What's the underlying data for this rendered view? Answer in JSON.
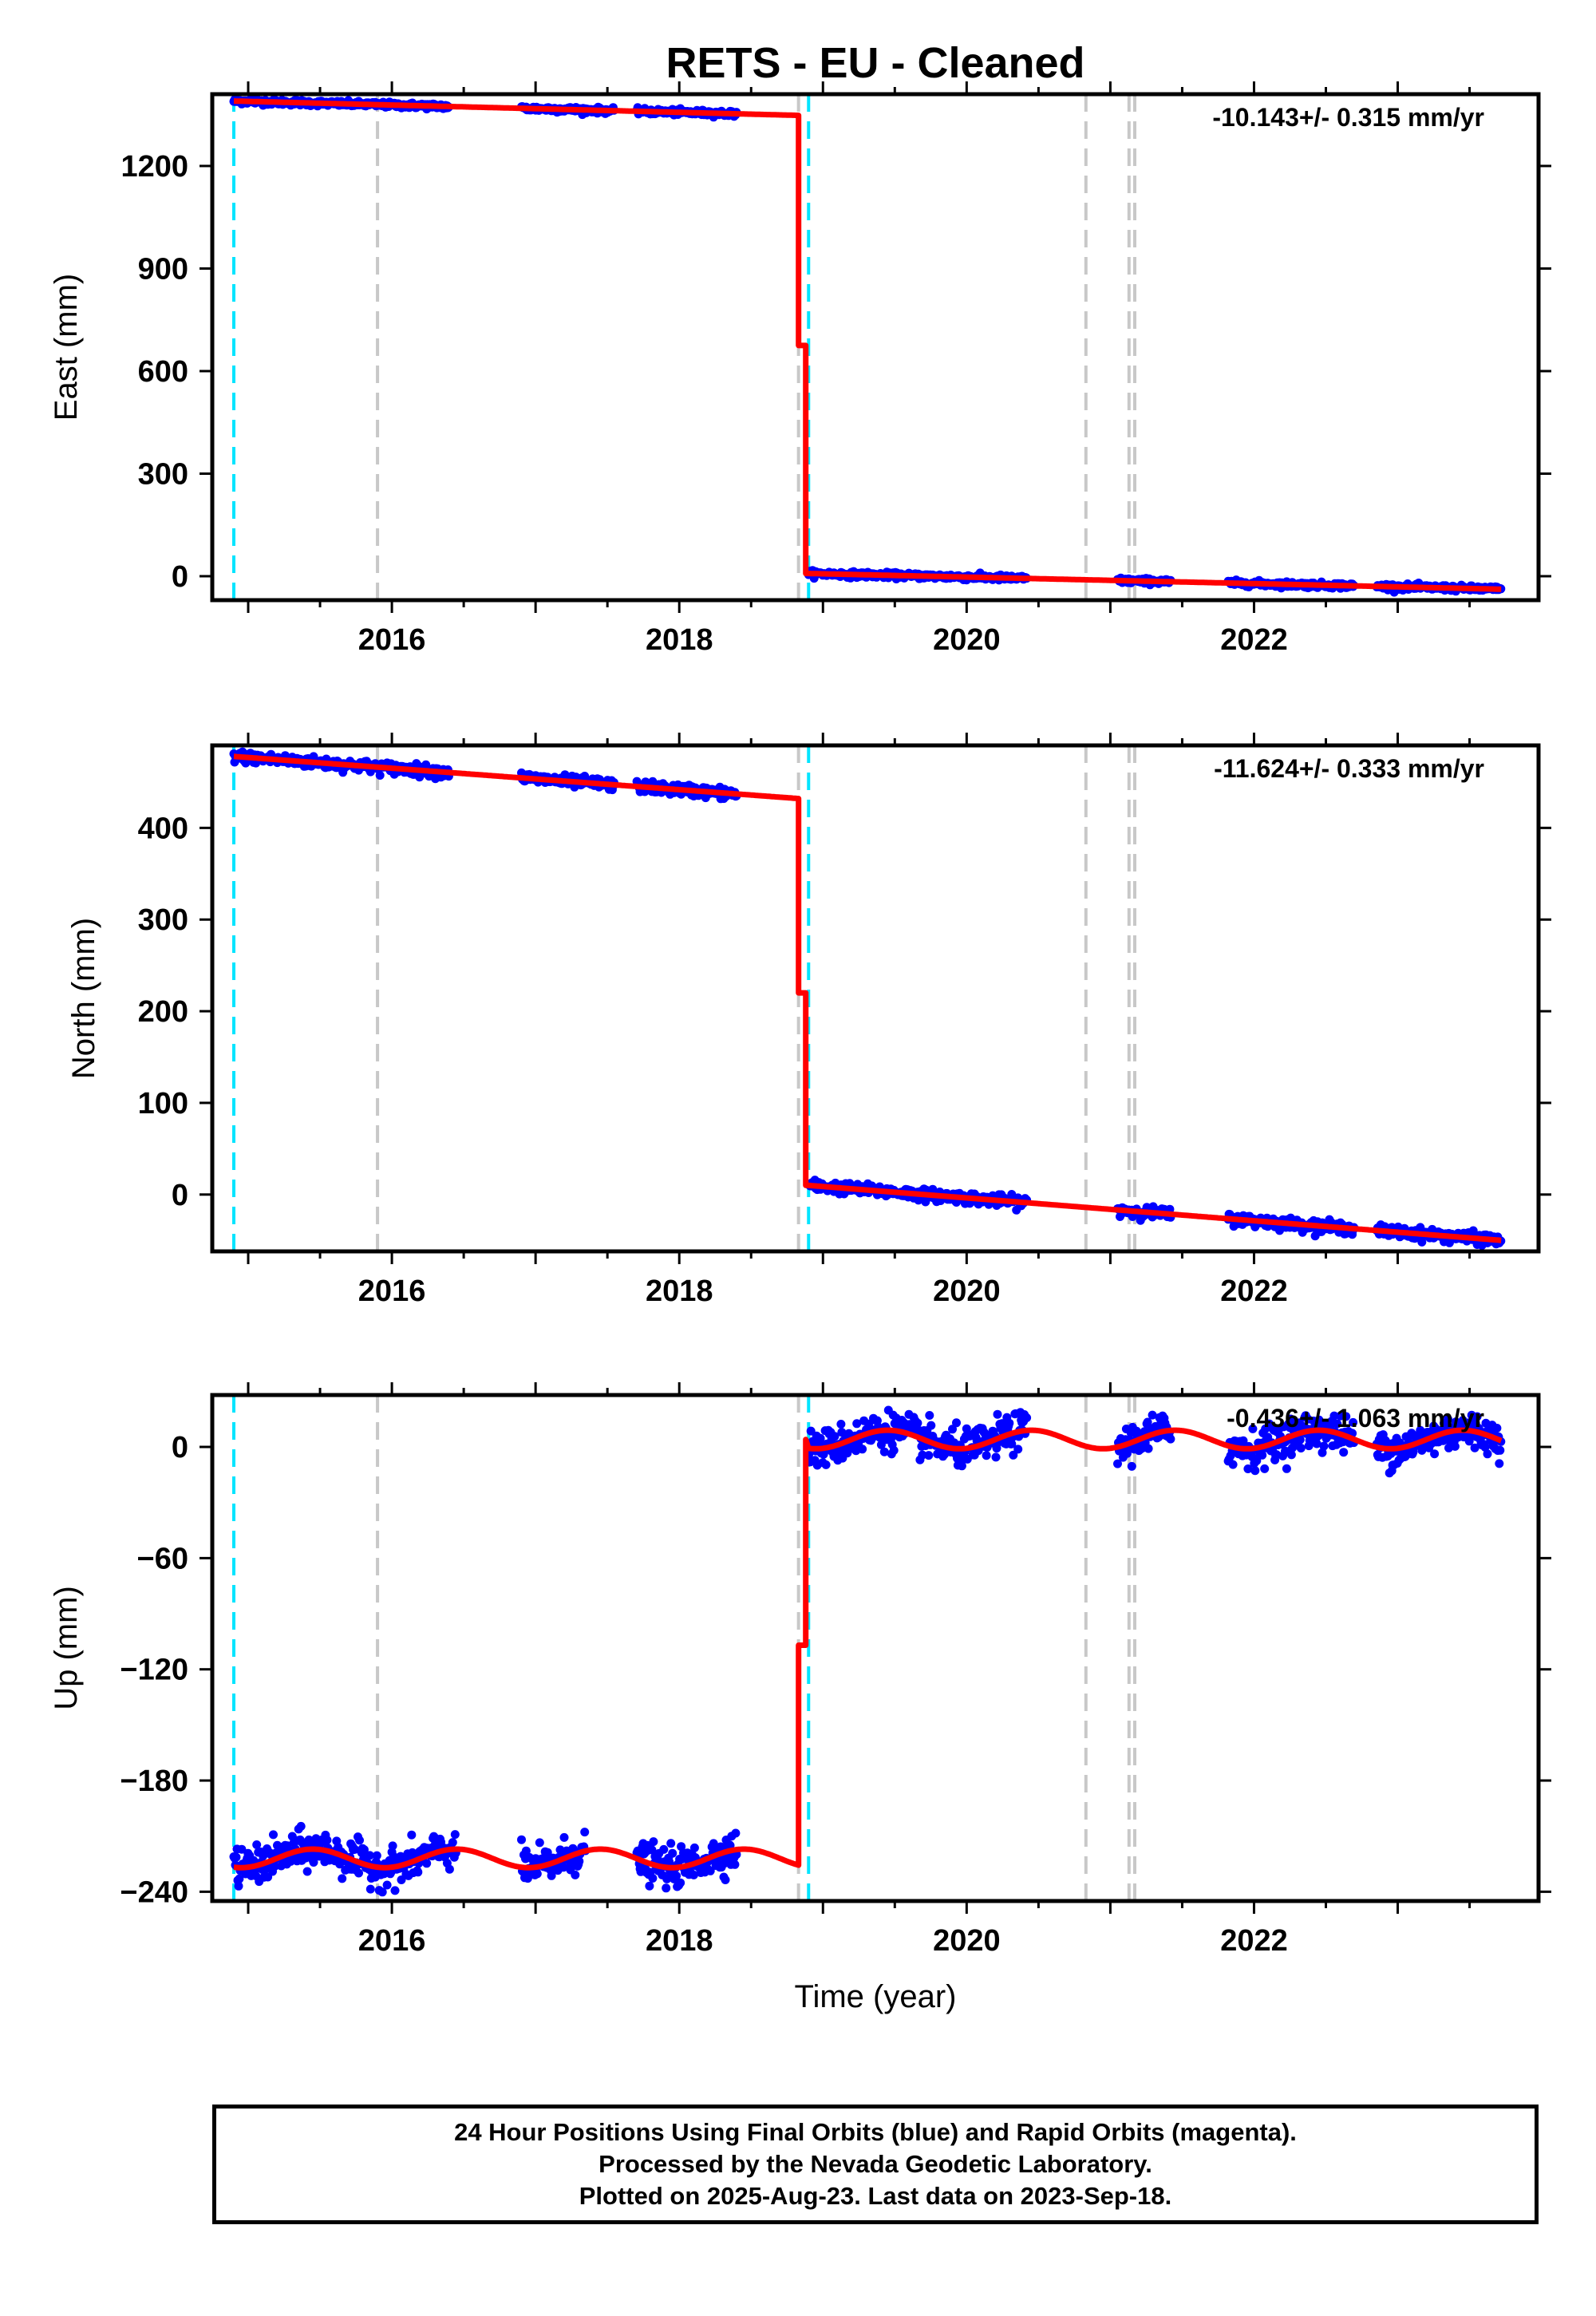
{
  "title": "RETS  - EU - Cleaned",
  "xlabel": "Time (year)",
  "colors": {
    "final_points": "#0000ff",
    "model": "#ff0000",
    "cyan_events": "#00e5ff",
    "gray_events": "#c8c8c8",
    "axes": "#000000"
  },
  "event_lines": {
    "cyan": [
      2014.9,
      2018.9
    ],
    "gray": [
      2015.9,
      2018.83,
      2020.83,
      2021.13,
      2021.17
    ]
  },
  "footer": {
    "line1": "24 Hour Positions Using Final Orbits (blue) and Rapid Orbits (magenta).",
    "line2": "Processed by the Nevada Geodetic Laboratory.",
    "line3": "Plotted on 2025-Aug-23. Last data on 2023-Sep-18."
  },
  "chart_data": [
    {
      "type": "scatter",
      "ylabel": "East (mm)",
      "rate_label": "-10.143+/- 0.315 mm/yr",
      "xlim": [
        2014.75,
        2023.98
      ],
      "ylim": [
        -70,
        1410
      ],
      "xticks": [
        2016,
        2018,
        2020,
        2022
      ],
      "yticks": [
        0,
        300,
        600,
        900,
        1200
      ],
      "segments": [
        {
          "x_start": 2014.9,
          "y_start": 1390,
          "x_end": 2018.83,
          "y_end": 1348
        },
        {
          "x_start": 2018.9,
          "y_start": 8,
          "x_end": 2023.72,
          "y_end": -38
        }
      ],
      "step_points": [
        [
          2018.83,
          1348
        ],
        [
          2018.83,
          675
        ],
        [
          2018.88,
          675
        ],
        [
          2018.88,
          8
        ]
      ],
      "data_gaps": [
        [
          2016.4,
          2016.9
        ],
        [
          2017.55,
          2017.7
        ],
        [
          2018.4,
          2018.9
        ],
        [
          2020.42,
          2021.05
        ],
        [
          2021.42,
          2021.82
        ],
        [
          2022.7,
          2022.85
        ]
      ],
      "scatter_noise": 4,
      "seasonal_amplitude": 0
    },
    {
      "type": "scatter",
      "ylabel": "North (mm)",
      "rate_label": "-11.624+/- 0.333 mm/yr",
      "xlim": [
        2014.75,
        2023.98
      ],
      "ylim": [
        -62,
        490
      ],
      "xticks": [
        2016,
        2018,
        2020,
        2022
      ],
      "yticks": [
        0,
        100,
        200,
        300,
        400
      ],
      "segments": [
        {
          "x_start": 2014.9,
          "y_start": 478,
          "x_end": 2018.83,
          "y_end": 432
        },
        {
          "x_start": 2018.9,
          "y_start": 10,
          "x_end": 2023.72,
          "y_end": -50
        }
      ],
      "step_points": [
        [
          2018.83,
          432
        ],
        [
          2018.83,
          220
        ],
        [
          2018.88,
          220
        ],
        [
          2018.88,
          10
        ]
      ],
      "data_gaps": [
        [
          2016.4,
          2016.9
        ],
        [
          2017.55,
          2017.7
        ],
        [
          2018.4,
          2018.9
        ],
        [
          2020.42,
          2021.05
        ],
        [
          2021.42,
          2021.82
        ],
        [
          2022.7,
          2022.85
        ]
      ],
      "scatter_noise": 3,
      "seasonal_amplitude": 0
    },
    {
      "type": "scatter",
      "ylabel": "Up (mm)",
      "rate_label": "-0.436+/- 1.063 mm/yr",
      "xlim": [
        2014.75,
        2023.98
      ],
      "ylim": [
        -245,
        28
      ],
      "xticks": [
        2016,
        2018,
        2020,
        2022
      ],
      "yticks": [
        -240,
        -180,
        -120,
        -60,
        0
      ],
      "segments": [
        {
          "x_start": 2014.9,
          "y_start": -222,
          "x_end": 2018.83,
          "y_end": -222
        },
        {
          "x_start": 2018.9,
          "y_start": 4,
          "x_end": 2023.72,
          "y_end": 4
        }
      ],
      "step_points": [
        [
          2018.83,
          -222
        ],
        [
          2018.83,
          -107
        ],
        [
          2018.88,
          -107
        ],
        [
          2018.88,
          4
        ]
      ],
      "data_gaps": [
        [
          2016.45,
          2016.9
        ],
        [
          2017.35,
          2017.7
        ],
        [
          2018.4,
          2018.9
        ],
        [
          2020.42,
          2021.05
        ],
        [
          2021.42,
          2021.82
        ],
        [
          2022.7,
          2022.85
        ]
      ],
      "scatter_noise": 5,
      "seasonal_amplitude": 5
    }
  ]
}
